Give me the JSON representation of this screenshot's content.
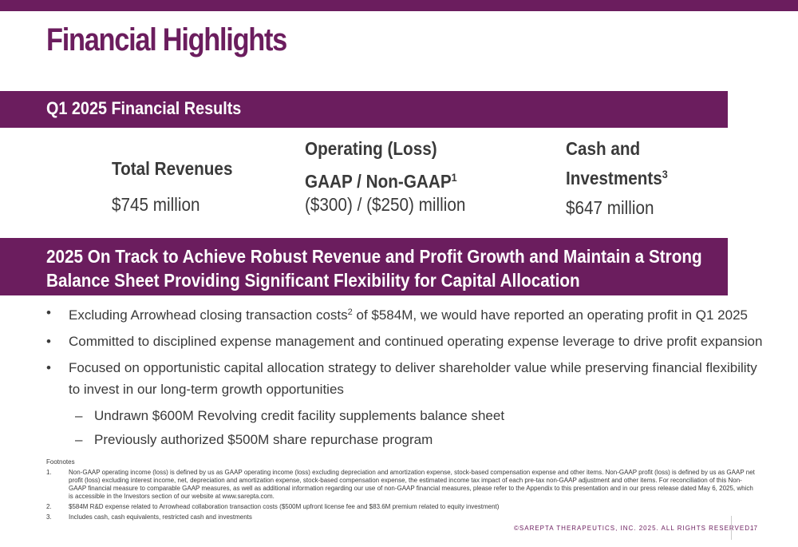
{
  "title": "Financial Highlights",
  "results_band": "Q1 2025 Financial Results",
  "kpis": {
    "revenue": {
      "label": "Total Revenues",
      "value": "$745 million"
    },
    "operating": {
      "label_line1": "Operating (Loss)",
      "label_line2": "GAAP / Non-GAAP",
      "label_sup": "1",
      "value": "($300) / ($250) million"
    },
    "cash": {
      "label_line1": "Cash and",
      "label_line2": "Investments",
      "label_sup": "3",
      "value": "$647 million"
    }
  },
  "track_band": "2025 On Track to Achieve Robust Revenue and Profit Growth and Maintain a Strong Balance Sheet Providing Significant Flexibility for Capital Allocation",
  "bullets": {
    "b1_pre": "Excluding Arrowhead closing transaction costs",
    "b1_sup": "2",
    "b1_post": " of $584M, we would have reported an operating profit in Q1 2025",
    "b2": "Committed to disciplined expense management and continued operating expense leverage to drive profit expansion",
    "b3": "Focused on opportunistic capital allocation strategy to deliver shareholder value while preserving financial flexibility to invest in our long-term growth opportunities",
    "sub1": "Undrawn $600M Revolving credit facility supplements balance sheet",
    "sub2": "Previously authorized $500M share repurchase program"
  },
  "footnotes": {
    "heading": "Footnotes",
    "items": [
      {
        "num": "1.",
        "text": "Non-GAAP operating income (loss) is defined by us as GAAP operating income (loss) excluding depreciation and amortization expense, stock-based compensation expense and other items. Non-GAAP profit (loss) is defined by us as GAAP net profit (loss) excluding interest income, net, depreciation and amortization expense, stock-based compensation expense, the estimated income tax impact of each pre-tax non-GAAP adjustment and other items. For reconciliation of this Non-GAAP financial measure to comparable GAAP measures, as well as additional information regarding our use of non-GAAP financial measures, please refer to the Appendix to this presentation and in our press release dated May 6, 2025, which is accessible in the Investors section of our website at www.sarepta.com."
      },
      {
        "num": "2.",
        "text": "$584M R&D expense related to Arrowhead collaboration transaction costs ($500M upfront license fee and $83.6M premium related to equity investment)"
      },
      {
        "num": "3.",
        "text": "Includes cash, cash equivalents, restricted cash and investments"
      }
    ]
  },
  "copyright": "©SAREPTA THERAPEUTICS, INC. 2025.  ALL RIGHTS RESERVED.",
  "page_number": "17",
  "colors": {
    "brand": "#6b1d5e",
    "text": "#3a3a3a"
  }
}
